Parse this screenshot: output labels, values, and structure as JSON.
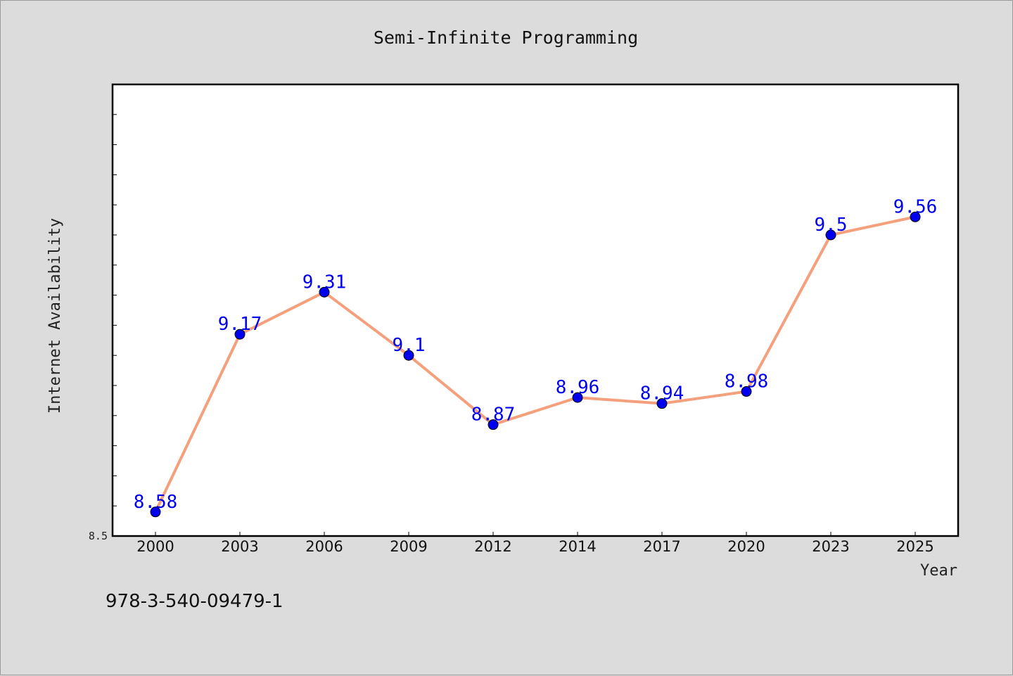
{
  "footer_text": "978-3-540-09479-1",
  "colors": {
    "line": "#f4a07c",
    "marker": "#0000ee",
    "label": "#0000ee",
    "background": "#dcdcdc",
    "plot_bg": "#ffffff"
  },
  "chart_data": {
    "type": "line",
    "title": "Semi-Infinite Programming",
    "xlabel": "Year",
    "ylabel": "Internet Availability",
    "categories": [
      "2000",
      "2003",
      "2006",
      "2009",
      "2012",
      "2014",
      "2017",
      "2020",
      "2023",
      "2025"
    ],
    "series": [
      {
        "values": [
          8.58,
          9.17,
          9.31,
          9.1,
          8.87,
          8.96,
          8.94,
          8.98,
          9.5,
          9.56
        ]
      }
    ],
    "data_labels": [
      "8.58",
      "9.17",
      "9.31",
      "9.1",
      "8.87",
      "8.96",
      "8.94",
      "8.98",
      "9.5",
      "9.56"
    ],
    "ylim": [
      8.5,
      10.0
    ],
    "y_tick_label": "8.5",
    "grid": false,
    "legend": "none"
  }
}
